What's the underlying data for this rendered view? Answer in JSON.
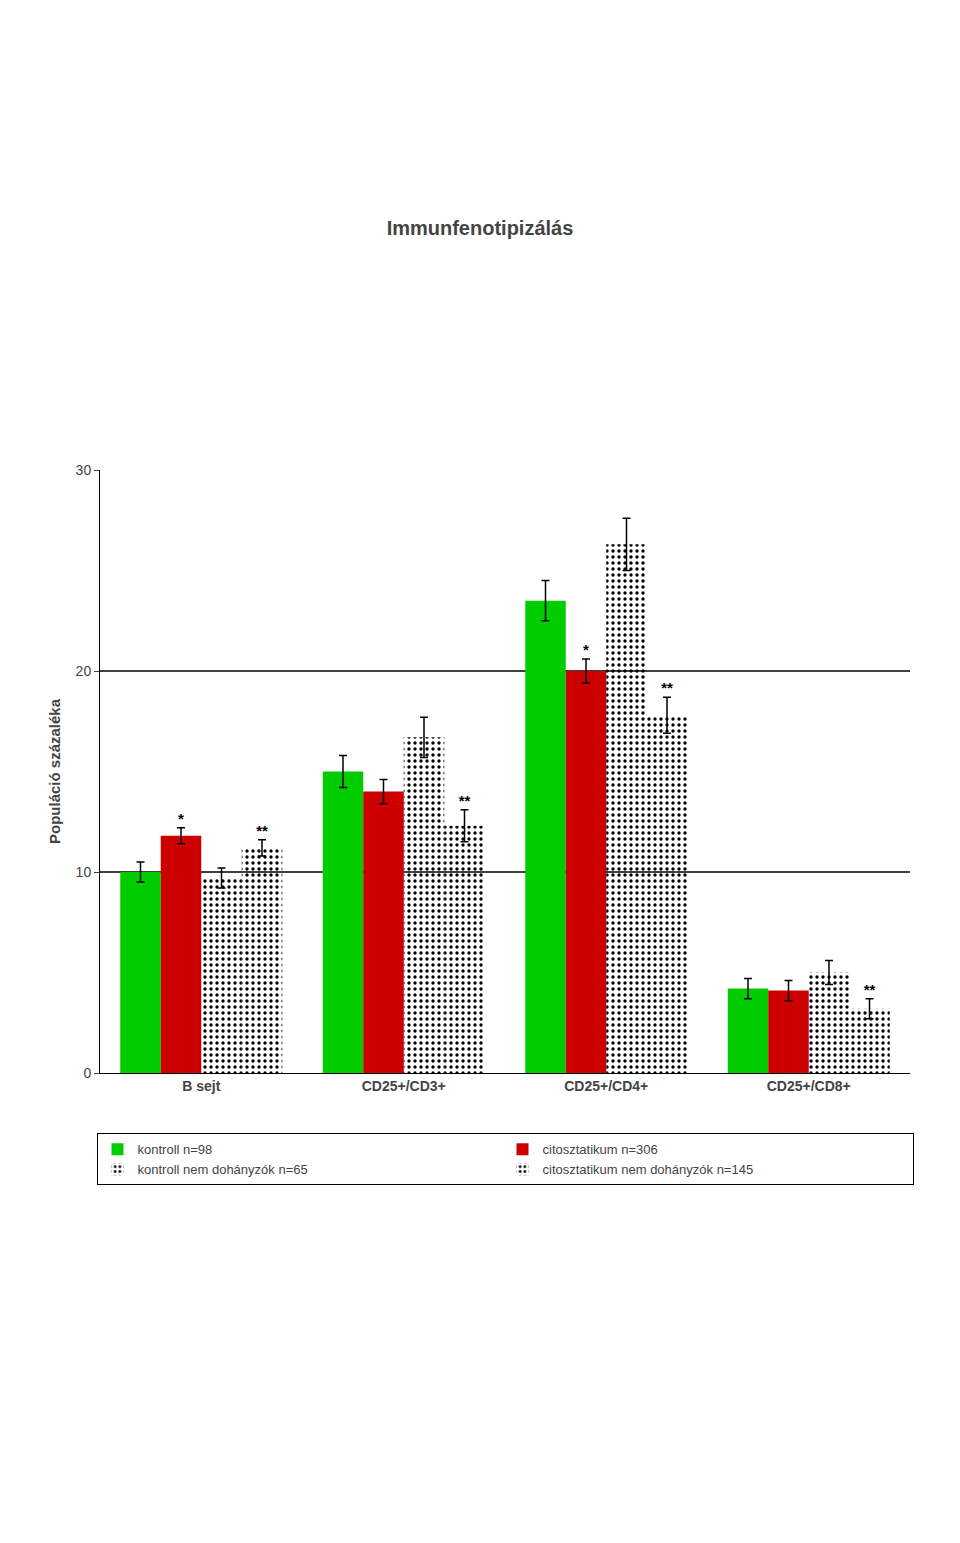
{
  "chart_data": {
    "type": "bar",
    "title": "Immunfenotipizálás",
    "ylabel": "Populáció százaléka",
    "categories": [
      "B sejt",
      "CD25+/CD3+",
      "CD25+/CD4+",
      "CD25+/CD8+"
    ],
    "series": [
      {
        "name": "kontroll n=98",
        "color": "#00cc00",
        "values": [
          10.0,
          15.0,
          23.5,
          4.2
        ],
        "errors": [
          0.5,
          0.8,
          1.0,
          0.5
        ]
      },
      {
        "name": "citosztatikum n=306",
        "color": "#cc0000",
        "values": [
          11.8,
          14.0,
          20.0,
          4.1
        ],
        "errors": [
          0.4,
          0.6,
          0.6,
          0.5
        ]
      },
      {
        "name": "kontroll nem dohányzók n=65",
        "color": "#33ff33",
        "marker": "dots",
        "values": [
          9.7,
          16.7,
          26.3,
          5.0
        ],
        "errors": [
          0.5,
          1.0,
          1.3,
          0.6
        ]
      },
      {
        "name": "citosztatikum nem dohányzók n=145",
        "color": "#ff3333",
        "marker": "dots",
        "values": [
          11.2,
          12.3,
          17.8,
          3.2
        ],
        "errors": [
          0.4,
          0.8,
          0.9,
          0.5
        ]
      }
    ],
    "ylim": [
      0,
      30
    ],
    "yticks": [
      0,
      10,
      20,
      30
    ],
    "grid": false,
    "legend": "bottom",
    "reference_lines": [
      10,
      20
    ],
    "annotations": [
      {
        "category": "B sejt",
        "series": "citosztatikum n=306",
        "text": "*"
      },
      {
        "category": "B sejt",
        "series": "citosztatikum nem dohányzók n=145",
        "text": "**"
      },
      {
        "category": "CD25+/CD3+",
        "series": "citosztatikum nem dohányzók n=145",
        "text": "**"
      },
      {
        "category": "CD25+/CD4+",
        "series": "citosztatikum n=306",
        "text": "*"
      },
      {
        "category": "CD25+/CD4+",
        "series": "citosztatikum nem dohányzók n=145",
        "text": "**"
      },
      {
        "category": "CD25+/CD8+",
        "series": "citosztatikum nem dohányzók n=145",
        "text": "**"
      }
    ]
  }
}
